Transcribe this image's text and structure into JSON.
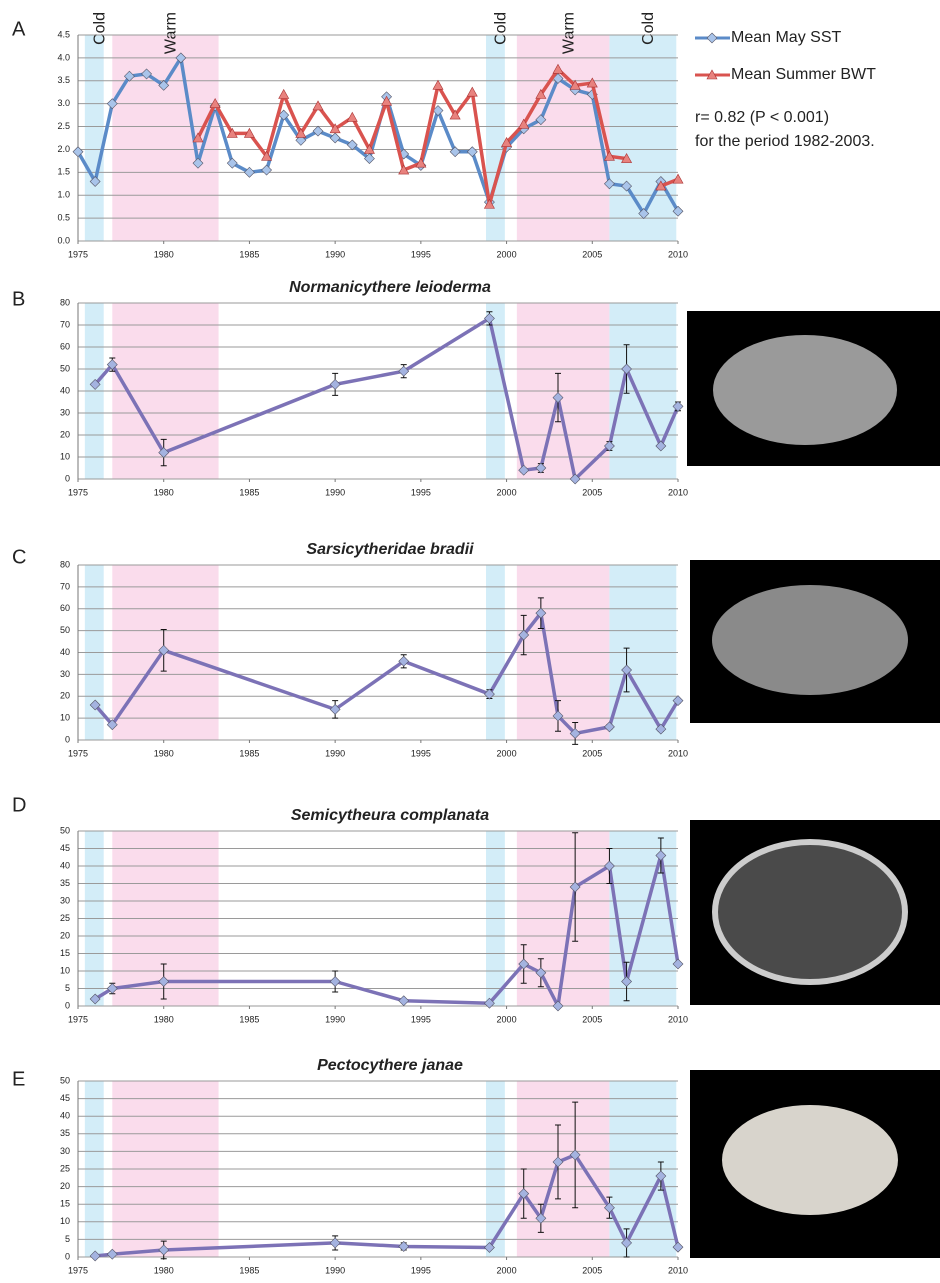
{
  "chart_data": [
    {
      "type": "line",
      "label": "A",
      "xlim": [
        1975,
        2010
      ],
      "xticks": [
        1975,
        1980,
        1985,
        1990,
        1995,
        2000,
        2005,
        2010
      ],
      "ylim": [
        0,
        4.5
      ],
      "yticks": [
        {
          "value": 0,
          "label": "0.0"
        },
        0.5,
        {
          "value": 1,
          "label": "1.0"
        },
        1.5,
        {
          "value": 2,
          "label": "2.0"
        },
        2.5,
        {
          "value": 3,
          "label": "3.0"
        },
        3.5,
        {
          "value": 4,
          "label": "4.0"
        },
        4.5
      ],
      "grid": true,
      "legend": "right",
      "periods": [
        {
          "label": "Cold",
          "start": 1975.4,
          "end": 1976.5,
          "color": "#d3edf8"
        },
        {
          "label": "Warm",
          "start": 1977,
          "end": 1983.2,
          "color": "#fadcec"
        },
        {
          "label": "Cold",
          "start": 1998.8,
          "end": 1999.9,
          "color": "#d3edf8"
        },
        {
          "label": "Warm",
          "start": 2000.6,
          "end": 2006,
          "color": "#fadcec"
        },
        {
          "label": "Cold",
          "start": 2006,
          "end": 2009.9,
          "color": "#d3edf8"
        }
      ],
      "x": [
        1975,
        1976,
        1977,
        1978,
        1979,
        1980,
        1981,
        1982,
        1983,
        1984,
        1985,
        1986,
        1987,
        1988,
        1989,
        1990,
        1991,
        1992,
        1993,
        1994,
        1995,
        1996,
        1997,
        1998,
        1999,
        2000,
        2001,
        2002,
        2003,
        2004,
        2005,
        2006,
        2007,
        2008,
        2009,
        2010
      ],
      "series": [
        {
          "name": "Mean May SST",
          "color": "#5b8bc8",
          "marker_color": "#a9c4ea",
          "marker": "diamond",
          "values": [
            1.95,
            1.3,
            3.0,
            3.6,
            3.65,
            3.4,
            4.0,
            1.7,
            2.95,
            1.7,
            1.5,
            1.55,
            2.75,
            2.2,
            2.4,
            2.25,
            2.1,
            1.8,
            3.15,
            1.9,
            1.65,
            2.85,
            1.95,
            1.95,
            0.85,
            2.05,
            2.45,
            2.65,
            3.55,
            3.3,
            3.2,
            1.25,
            1.2,
            0.6,
            1.3,
            0.65
          ]
        },
        {
          "name": "Mean Summer BWT",
          "color": "#d9534f",
          "marker_color": "#e8827e",
          "marker": "triangle",
          "values": [
            null,
            null,
            null,
            null,
            null,
            null,
            null,
            2.25,
            3.0,
            2.35,
            2.35,
            1.85,
            3.2,
            2.35,
            2.95,
            2.45,
            2.7,
            2.0,
            3.05,
            1.55,
            1.7,
            3.4,
            2.75,
            3.25,
            0.8,
            2.15,
            2.55,
            3.2,
            3.75,
            3.4,
            3.45,
            1.85,
            1.8,
            null,
            1.2,
            1.35
          ]
        }
      ],
      "annotations": [
        "r= 0.82  (P < 0.001)",
        "for the period 1982-2003."
      ]
    },
    {
      "type": "line",
      "label": "B",
      "title": "Normanicythere leioderma",
      "xlim": [
        1975,
        2010
      ],
      "xticks": [
        1975,
        1980,
        1985,
        1990,
        1995,
        2000,
        2005,
        2010
      ],
      "ylim": [
        0,
        80
      ],
      "yticks": [
        0,
        10,
        20,
        30,
        40,
        50,
        60,
        70,
        80
      ],
      "grid": true,
      "periods": [
        {
          "start": 1975.4,
          "end": 1976.5,
          "color": "#d3edf8"
        },
        {
          "start": 1977,
          "end": 1983.2,
          "color": "#fadcec"
        },
        {
          "start": 1998.8,
          "end": 1999.9,
          "color": "#d3edf8"
        },
        {
          "start": 2000.6,
          "end": 2006,
          "color": "#fadcec"
        },
        {
          "start": 2006,
          "end": 2009.9,
          "color": "#d3edf8"
        }
      ],
      "x": [
        1976,
        1977,
        1980,
        1990,
        1994,
        1999,
        2001,
        2002,
        2003,
        2004,
        2006,
        2007,
        2009,
        2010
      ],
      "series": [
        {
          "color": "#7c72b6",
          "marker_color": "#a4b3e0",
          "marker": "diamond",
          "values": [
            43,
            52,
            12,
            43,
            49,
            73,
            4,
            5,
            37,
            0,
            15,
            50,
            15,
            33
          ],
          "errors": [
            null,
            3,
            6,
            5,
            3,
            3,
            1,
            2,
            11,
            null,
            2,
            11,
            null,
            2
          ]
        }
      ]
    },
    {
      "type": "line",
      "label": "C",
      "title": "Sarsicytheridae bradii",
      "xlim": [
        1975,
        2010
      ],
      "xticks": [
        1975,
        1980,
        1985,
        1990,
        1995,
        2000,
        2005,
        2010
      ],
      "ylim": [
        0,
        80
      ],
      "yticks": [
        0,
        10,
        20,
        30,
        40,
        50,
        60,
        70,
        80
      ],
      "grid": true,
      "periods": [
        {
          "start": 1975.4,
          "end": 1976.5,
          "color": "#d3edf8"
        },
        {
          "start": 1977,
          "end": 1983.2,
          "color": "#fadcec"
        },
        {
          "start": 1998.8,
          "end": 1999.9,
          "color": "#d3edf8"
        },
        {
          "start": 2000.6,
          "end": 2006,
          "color": "#fadcec"
        },
        {
          "start": 2006,
          "end": 2009.9,
          "color": "#d3edf8"
        }
      ],
      "x": [
        1976,
        1977,
        1980,
        1990,
        1994,
        1999,
        2001,
        2002,
        2003,
        2004,
        2006,
        2007,
        2009,
        2010
      ],
      "series": [
        {
          "color": "#7c72b6",
          "marker_color": "#a4b3e0",
          "marker": "diamond",
          "values": [
            16,
            7,
            41,
            14,
            36,
            21,
            48,
            58,
            11,
            3,
            6,
            32,
            5,
            18
          ],
          "errors": [
            null,
            null,
            9.5,
            4,
            3,
            2,
            9,
            7,
            7,
            5,
            1,
            10,
            1,
            1
          ]
        }
      ]
    },
    {
      "type": "line",
      "label": "D",
      "title": "Semicytheura complanata",
      "xlim": [
        1975,
        2010
      ],
      "xticks": [
        1975,
        1980,
        1985,
        1990,
        1995,
        2000,
        2005,
        2010
      ],
      "ylim": [
        0,
        50
      ],
      "yticks": [
        0,
        5,
        10,
        15,
        20,
        25,
        30,
        35,
        40,
        45,
        50
      ],
      "grid": true,
      "periods": [
        {
          "start": 1975.4,
          "end": 1976.5,
          "color": "#d3edf8"
        },
        {
          "start": 1977,
          "end": 1983.2,
          "color": "#fadcec"
        },
        {
          "start": 1998.8,
          "end": 1999.9,
          "color": "#d3edf8"
        },
        {
          "start": 2000.6,
          "end": 2006,
          "color": "#fadcec"
        },
        {
          "start": 2006,
          "end": 2009.9,
          "color": "#d3edf8"
        }
      ],
      "x": [
        1976,
        1977,
        1980,
        1990,
        1994,
        1999,
        2001,
        2002,
        2003,
        2004,
        2006,
        2007,
        2009,
        2010
      ],
      "series": [
        {
          "color": "#7c72b6",
          "marker_color": "#a4b3e0",
          "marker": "diamond",
          "values": [
            2,
            5,
            7,
            7,
            1.5,
            0.8,
            12,
            9.5,
            0,
            34,
            40,
            7,
            43,
            12
          ],
          "errors": [
            null,
            1.5,
            5,
            3,
            null,
            null,
            5.5,
            4,
            null,
            15.5,
            5,
            5.5,
            5,
            null
          ]
        }
      ]
    },
    {
      "type": "line",
      "label": "E",
      "title": "Pectocythere janae",
      "xlim": [
        1975,
        2010
      ],
      "xticks": [
        1975,
        1980,
        1985,
        1990,
        1995,
        2000,
        2005,
        2010
      ],
      "ylim": [
        0,
        50
      ],
      "yticks": [
        0,
        5,
        10,
        15,
        20,
        25,
        30,
        35,
        40,
        45,
        50
      ],
      "grid": true,
      "periods": [
        {
          "start": 1975.4,
          "end": 1976.5,
          "color": "#d3edf8"
        },
        {
          "start": 1977,
          "end": 1983.2,
          "color": "#fadcec"
        },
        {
          "start": 1998.8,
          "end": 1999.9,
          "color": "#d3edf8"
        },
        {
          "start": 2000.6,
          "end": 2006,
          "color": "#fadcec"
        },
        {
          "start": 2006,
          "end": 2009.9,
          "color": "#d3edf8"
        }
      ],
      "x": [
        1976,
        1977,
        1980,
        1990,
        1994,
        1999,
        2001,
        2002,
        2003,
        2004,
        2006,
        2007,
        2009,
        2010
      ],
      "series": [
        {
          "color": "#7c72b6",
          "marker_color": "#a4b3e0",
          "marker": "diamond",
          "values": [
            0.3,
            0.8,
            2,
            4,
            3,
            2.7,
            18,
            11,
            27,
            29,
            14,
            4,
            23,
            2.8
          ],
          "errors": [
            null,
            null,
            2.5,
            2,
            1,
            null,
            7,
            4,
            10.5,
            15,
            3,
            4,
            4,
            null
          ]
        }
      ]
    }
  ]
}
